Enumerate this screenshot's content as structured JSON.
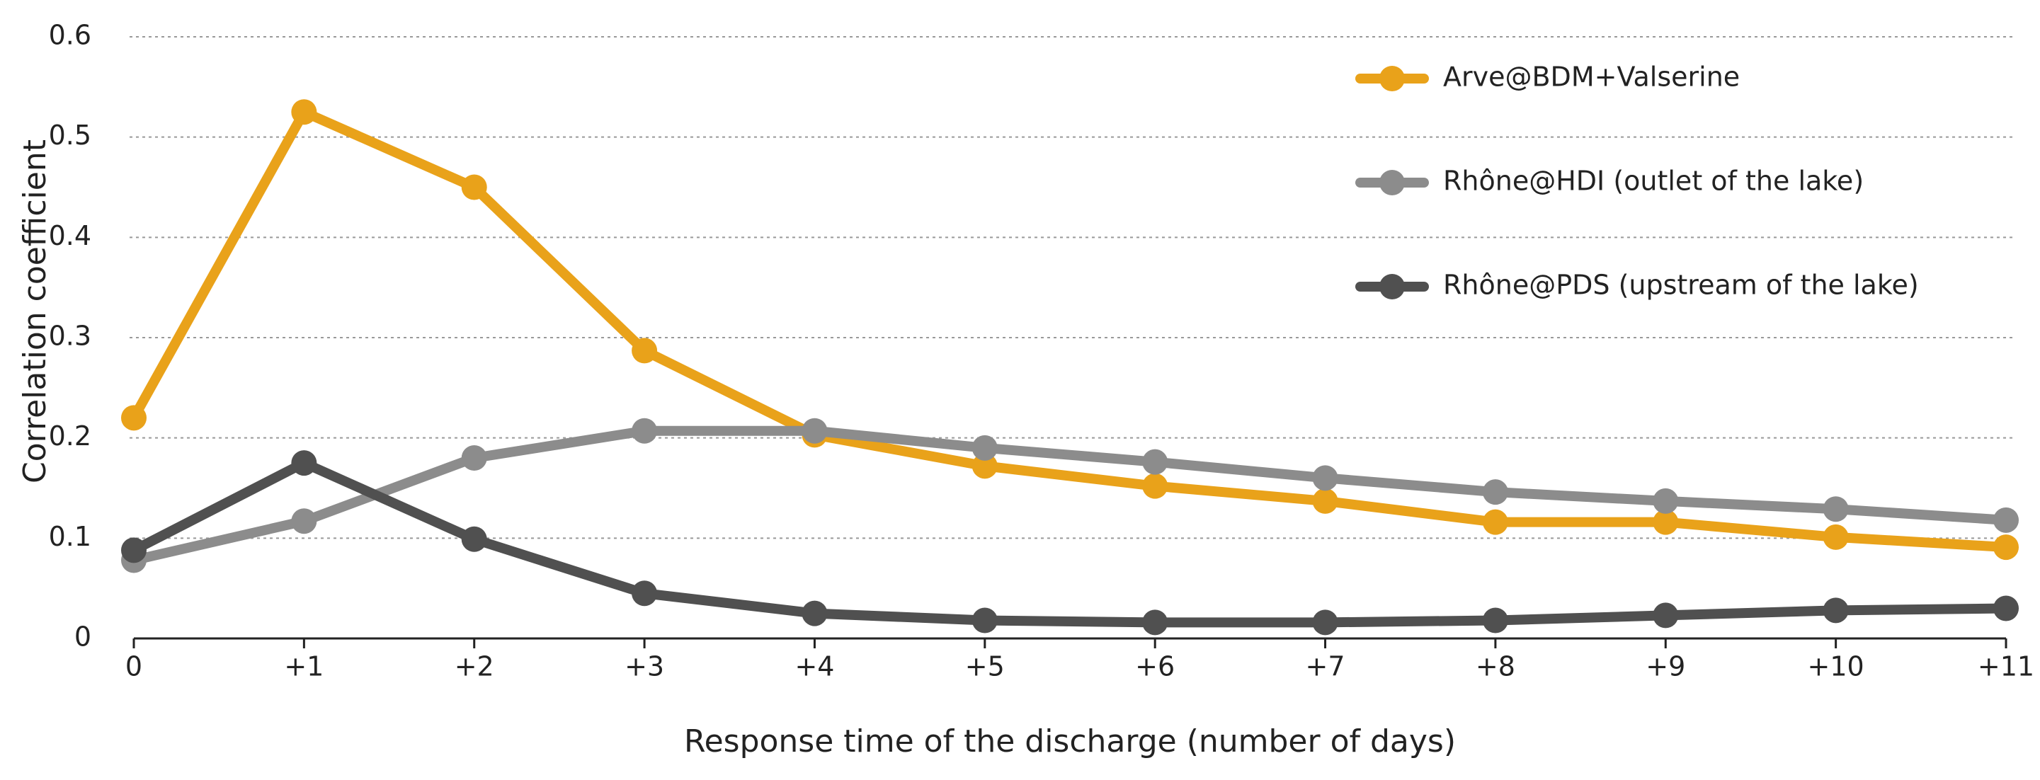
{
  "chart_data": {
    "type": "line",
    "x_label": "Response time of the discharge (number of days)",
    "y_label": "Correlation coefficient",
    "categories": [
      "0",
      "+1",
      "+2",
      "+3",
      "+4",
      "+5",
      "+6",
      "+7",
      "+8",
      "+9",
      "+10",
      "+11"
    ],
    "series": [
      {
        "name": "Arve@BDM+Valserine",
        "color": "#e9a21a",
        "values": [
          0.22,
          0.525,
          0.45,
          0.287,
          0.203,
          0.172,
          0.152,
          0.137,
          0.116,
          0.116,
          0.101,
          0.091
        ]
      },
      {
        "name": "Rhône@HDI (outlet of the lake)",
        "color": "#8c8c8c",
        "values": [
          0.078,
          0.117,
          0.18,
          0.207,
          0.207,
          0.19,
          0.176,
          0.16,
          0.146,
          0.137,
          0.129,
          0.118
        ]
      },
      {
        "name": "Rhône@PDS (upstream of the lake)",
        "color": "#505050",
        "values": [
          0.088,
          0.175,
          0.099,
          0.045,
          0.025,
          0.018,
          0.016,
          0.016,
          0.018,
          0.023,
          0.028,
          0.03
        ]
      }
    ],
    "ylim": [
      0,
      0.6
    ],
    "yticks": [
      0,
      0.1,
      0.2,
      0.3,
      0.4,
      0.5,
      0.6
    ],
    "grid": true,
    "legend": "upper right"
  }
}
